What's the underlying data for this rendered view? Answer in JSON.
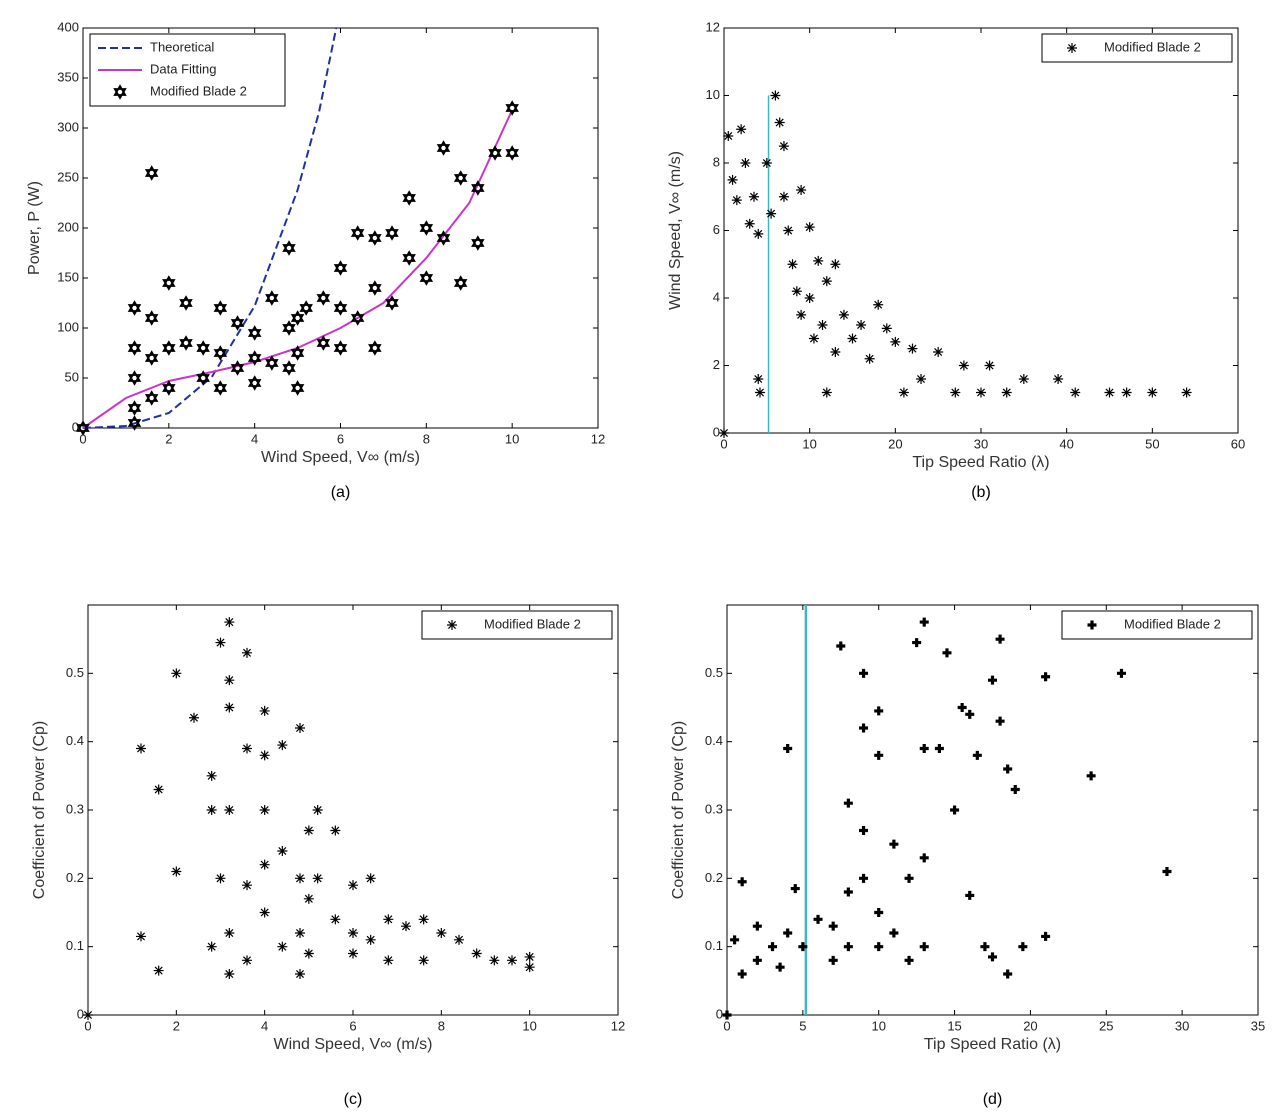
{
  "chart_data": [
    {
      "type": "scatter",
      "caption": "(a)",
      "xlabel": "Wind Speed, V∞ (m/s)",
      "ylabel": "Power, P (W)",
      "xlim": [
        0,
        12
      ],
      "ylim": [
        0,
        400
      ],
      "xticks": [
        0,
        2,
        4,
        6,
        8,
        10,
        12
      ],
      "yticks": [
        0,
        50,
        100,
        150,
        200,
        250,
        300,
        350,
        400
      ],
      "legend": "upper left",
      "series": [
        {
          "name": "Theoretical",
          "color": "#1f2fa8",
          "line_style": "dashed",
          "x": [
            0,
            1,
            2,
            3,
            4,
            5,
            5.5,
            5.9
          ],
          "values": [
            0,
            2,
            15,
            51,
            122,
            238,
            316,
            400
          ]
        },
        {
          "name": "Data Fitting",
          "color": "#cc33cc",
          "line_style": "solid",
          "x": [
            0,
            1,
            2,
            3,
            4,
            5,
            6,
            7,
            8,
            9,
            10
          ],
          "values": [
            0,
            30,
            47,
            56,
            66,
            80,
            100,
            125,
            170,
            225,
            318
          ]
        },
        {
          "name": "Modified Blade 2",
          "color": "#000000",
          "marker": "hexagram",
          "x": [
            0,
            1.2,
            1.2,
            1.2,
            1.2,
            1.2,
            1.6,
            1.6,
            1.6,
            1.6,
            2,
            2,
            2,
            2.4,
            2.4,
            2.8,
            2.8,
            3.2,
            3.2,
            3.2,
            3.6,
            3.6,
            4,
            4,
            4,
            4.4,
            4.4,
            4.8,
            4.8,
            4.8,
            5,
            5,
            5,
            5.2,
            5.6,
            5.6,
            6,
            6,
            6,
            6.4,
            6.4,
            6.8,
            6.8,
            6.8,
            7.2,
            7.2,
            7.6,
            7.6,
            8,
            8,
            8.4,
            8.4,
            8.8,
            8.8,
            9.2,
            9.2,
            9.6,
            10,
            10
          ],
          "values": [
            0,
            120,
            80,
            50,
            20,
            5,
            110,
            255,
            70,
            30,
            145,
            80,
            40,
            125,
            85,
            80,
            50,
            120,
            75,
            40,
            105,
            60,
            95,
            70,
            45,
            130,
            65,
            180,
            100,
            60,
            110,
            75,
            40,
            120,
            130,
            85,
            160,
            120,
            80,
            195,
            110,
            190,
            140,
            80,
            195,
            125,
            230,
            170,
            200,
            150,
            280,
            190,
            250,
            145,
            240,
            185,
            275,
            320,
            275
          ]
        }
      ]
    },
    {
      "type": "scatter",
      "caption": "(b)",
      "xlabel": "Tip Speed Ratio (λ)",
      "ylabel": "Wind Speed, V∞ (m/s)",
      "xlim": [
        0,
        60
      ],
      "ylim": [
        0,
        12
      ],
      "xticks": [
        0,
        10,
        20,
        30,
        40,
        50,
        60
      ],
      "yticks": [
        0,
        2,
        4,
        6,
        8,
        10,
        12
      ],
      "legend": "upper right",
      "vline": {
        "x": 5.2,
        "y": [
          0,
          10
        ],
        "color": "#3cb8c0"
      },
      "series": [
        {
          "name": "Modified Blade 2",
          "color": "#000000",
          "marker": "asterisk",
          "x": [
            0,
            0.5,
            1,
            1.5,
            2,
            2.5,
            3,
            3.5,
            4,
            4,
            4.2,
            5,
            5.5,
            6,
            6.5,
            7,
            7,
            7.5,
            8,
            8.5,
            9,
            9,
            10,
            10,
            10.5,
            11,
            11.5,
            12,
            12,
            13,
            13,
            14,
            15,
            16,
            17,
            18,
            19,
            20,
            21,
            22,
            23,
            25,
            27,
            28,
            30,
            31,
            33,
            35,
            39,
            41,
            45,
            47,
            50,
            54
          ],
          "values": [
            0,
            8.8,
            7.5,
            6.9,
            9,
            8,
            6.2,
            7,
            5.9,
            1.6,
            1.2,
            8,
            6.5,
            10,
            9.2,
            8.5,
            7,
            6,
            5,
            4.2,
            7.2,
            3.5,
            6.1,
            4,
            2.8,
            5.1,
            3.2,
            4.5,
            1.2,
            5,
            2.4,
            3.5,
            2.8,
            3.2,
            2.2,
            3.8,
            3.1,
            2.7,
            1.2,
            2.5,
            1.6,
            2.4,
            1.2,
            2,
            1.2,
            2,
            1.2,
            1.6,
            1.6,
            1.2,
            1.2,
            1.2,
            1.2,
            1.2
          ]
        }
      ]
    },
    {
      "type": "scatter",
      "caption": "(c)",
      "xlabel": "Wind Speed, V∞ (m/s)",
      "ylabel": "Coefficient of Power (Cp)",
      "xlim": [
        0,
        12
      ],
      "ylim": [
        0,
        0.6
      ],
      "xticks": [
        0,
        2,
        4,
        6,
        8,
        10,
        12
      ],
      "yticks": [
        0,
        0.1,
        0.2,
        0.3,
        0.4,
        0.5
      ],
      "legend": "upper right",
      "series": [
        {
          "name": "Modified Blade 2",
          "color": "#000000",
          "marker": "asterisk",
          "x": [
            0,
            1.2,
            1.2,
            1.6,
            1.6,
            2,
            2,
            2.4,
            2.8,
            2.8,
            2.8,
            3,
            3,
            3.2,
            3.2,
            3.2,
            3.2,
            3.2,
            3.2,
            3.6,
            3.6,
            3.6,
            3.6,
            4,
            4,
            4,
            4,
            4,
            4.4,
            4.4,
            4.4,
            4.8,
            4.8,
            4.8,
            4.8,
            5,
            5,
            5,
            5.2,
            5.2,
            5.6,
            5.6,
            6,
            6,
            6,
            6.4,
            6.4,
            6.8,
            6.8,
            7.2,
            7.6,
            7.6,
            8,
            8.4,
            8.8,
            9.2,
            9.6,
            10,
            10
          ],
          "values": [
            0,
            0.39,
            0.115,
            0.33,
            0.065,
            0.5,
            0.21,
            0.435,
            0.35,
            0.3,
            0.1,
            0.545,
            0.2,
            0.575,
            0.49,
            0.45,
            0.3,
            0.12,
            0.06,
            0.53,
            0.39,
            0.19,
            0.08,
            0.445,
            0.38,
            0.3,
            0.22,
            0.15,
            0.395,
            0.24,
            0.1,
            0.42,
            0.2,
            0.12,
            0.06,
            0.27,
            0.17,
            0.09,
            0.3,
            0.2,
            0.27,
            0.14,
            0.19,
            0.12,
            0.09,
            0.2,
            0.11,
            0.14,
            0.08,
            0.13,
            0.14,
            0.08,
            0.12,
            0.11,
            0.09,
            0.08,
            0.08,
            0.085,
            0.07
          ]
        }
      ]
    },
    {
      "type": "scatter",
      "caption": "(d)",
      "xlabel": "Tip Speed Ratio (λ)",
      "ylabel": "Coefficient of Power (Cp)",
      "xlim": [
        0,
        35
      ],
      "ylim": [
        0,
        0.6
      ],
      "xticks": [
        0,
        5,
        10,
        15,
        20,
        25,
        30,
        35
      ],
      "yticks": [
        0,
        0.1,
        0.2,
        0.3,
        0.4,
        0.5
      ],
      "legend": "upper right",
      "vline": {
        "x": 5.2,
        "y": [
          0,
          0.6
        ],
        "color": "#3cb8c0"
      },
      "series": [
        {
          "name": "Modified Blade 2",
          "color": "#000000",
          "marker": "plus",
          "x": [
            0,
            0.5,
            1,
            1,
            2,
            2,
            3,
            3.5,
            4,
            4,
            4.5,
            5,
            6,
            7,
            7,
            7.5,
            8,
            8,
            8,
            9,
            9,
            9,
            9,
            10,
            10,
            10,
            10,
            11,
            11,
            12,
            12,
            12.5,
            13,
            13,
            13,
            13,
            14,
            14.5,
            15,
            15.5,
            16,
            16,
            16.5,
            17,
            17.5,
            17.5,
            18,
            18,
            18.5,
            18.5,
            19,
            19.5,
            21,
            21,
            24,
            26,
            29
          ],
          "values": [
            0,
            0.11,
            0.195,
            0.06,
            0.13,
            0.08,
            0.1,
            0.07,
            0.39,
            0.12,
            0.185,
            0.1,
            0.14,
            0.13,
            0.08,
            0.54,
            0.31,
            0.18,
            0.1,
            0.5,
            0.42,
            0.27,
            0.2,
            0.445,
            0.38,
            0.15,
            0.1,
            0.25,
            0.12,
            0.2,
            0.08,
            0.545,
            0.575,
            0.39,
            0.23,
            0.1,
            0.39,
            0.53,
            0.3,
            0.45,
            0.44,
            0.175,
            0.38,
            0.1,
            0.49,
            0.085,
            0.55,
            0.43,
            0.36,
            0.06,
            0.33,
            0.1,
            0.495,
            0.115,
            0.35,
            0.5,
            0.21
          ]
        }
      ]
    }
  ]
}
